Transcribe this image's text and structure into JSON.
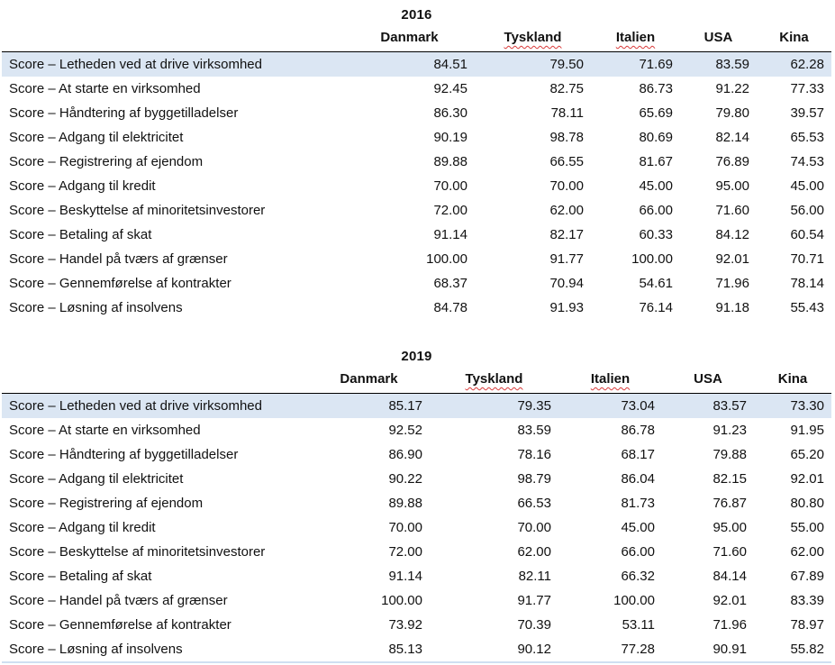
{
  "colors": {
    "highlight_row": "#dbe6f3",
    "header_rule": "#000000",
    "spellcheck_underline": "#d93b3b"
  },
  "tables": [
    {
      "year": "2016",
      "columns": [
        "Danmark",
        "Tyskland",
        "Italien",
        "USA",
        "Kina"
      ],
      "spellcheck_flagged": [
        "Tyskland",
        "Italien"
      ],
      "rows": [
        {
          "label": "Score – Letheden ved at drive virksomhed",
          "highlighted": true,
          "values": [
            "84.51",
            "79.50",
            "71.69",
            "83.59",
            "62.28"
          ]
        },
        {
          "label": "Score – At starte en virksomhed",
          "highlighted": false,
          "values": [
            "92.45",
            "82.75",
            "86.73",
            "91.22",
            "77.33"
          ]
        },
        {
          "label": "Score – Håndtering af byggetilladelser",
          "highlighted": false,
          "values": [
            "86.30",
            "78.11",
            "65.69",
            "79.80",
            "39.57"
          ]
        },
        {
          "label": "Score – Adgang til elektricitet",
          "highlighted": false,
          "values": [
            "90.19",
            "98.78",
            "80.69",
            "82.14",
            "65.53"
          ]
        },
        {
          "label": "Score – Registrering af ejendom",
          "highlighted": false,
          "values": [
            "89.88",
            "66.55",
            "81.67",
            "76.89",
            "74.53"
          ]
        },
        {
          "label": "Score – Adgang til kredit",
          "highlighted": false,
          "values": [
            "70.00",
            "70.00",
            "45.00",
            "95.00",
            "45.00"
          ]
        },
        {
          "label": "Score – Beskyttelse af minoritetsinvestorer",
          "highlighted": false,
          "values": [
            "72.00",
            "62.00",
            "66.00",
            "71.60",
            "56.00"
          ]
        },
        {
          "label": "Score – Betaling af skat",
          "highlighted": false,
          "values": [
            "91.14",
            "82.17",
            "60.33",
            "84.12",
            "60.54"
          ]
        },
        {
          "label": "Score – Handel på tværs af grænser",
          "highlighted": false,
          "values": [
            "100.00",
            "91.77",
            "100.00",
            "92.01",
            "70.71"
          ]
        },
        {
          "label": "Score – Gennemførelse af kontrakter",
          "highlighted": false,
          "values": [
            "68.37",
            "70.94",
            "54.61",
            "71.96",
            "78.14"
          ]
        },
        {
          "label": "Score – Løsning af insolvens",
          "highlighted": false,
          "values": [
            "84.78",
            "91.93",
            "76.14",
            "91.18",
            "55.43"
          ]
        }
      ]
    },
    {
      "year": "2019",
      "columns": [
        "Danmark",
        "Tyskland",
        "Italien",
        "USA",
        "Kina"
      ],
      "spellcheck_flagged": [
        "Tyskland",
        "Italien"
      ],
      "rows": [
        {
          "label": "Score – Letheden ved at drive virksomhed",
          "highlighted": true,
          "values": [
            "85.17",
            "79.35",
            "73.04",
            "83.57",
            "73.30"
          ]
        },
        {
          "label": "Score – At starte en virksomhed",
          "highlighted": false,
          "values": [
            "92.52",
            "83.59",
            "86.78",
            "91.23",
            "91.95"
          ]
        },
        {
          "label": "Score – Håndtering af byggetilladelser",
          "highlighted": false,
          "values": [
            "86.90",
            "78.16",
            "68.17",
            "79.88",
            "65.20"
          ]
        },
        {
          "label": "Score – Adgang til elektricitet",
          "highlighted": false,
          "values": [
            "90.22",
            "98.79",
            "86.04",
            "82.15",
            "92.01"
          ]
        },
        {
          "label": "Score – Registrering af ejendom",
          "highlighted": false,
          "values": [
            "89.88",
            "66.53",
            "81.73",
            "76.87",
            "80.80"
          ]
        },
        {
          "label": "Score – Adgang til kredit",
          "highlighted": false,
          "values": [
            "70.00",
            "70.00",
            "45.00",
            "95.00",
            "55.00"
          ]
        },
        {
          "label": "Score – Beskyttelse af minoritetsinvestorer",
          "highlighted": false,
          "values": [
            "72.00",
            "62.00",
            "66.00",
            "71.60",
            "62.00"
          ]
        },
        {
          "label": "Score – Betaling af skat",
          "highlighted": false,
          "values": [
            "91.14",
            "82.11",
            "66.32",
            "84.14",
            "67.89"
          ]
        },
        {
          "label": "Score – Handel på tværs af grænser",
          "highlighted": false,
          "values": [
            "100.00",
            "91.77",
            "100.00",
            "92.01",
            "83.39"
          ]
        },
        {
          "label": "Score – Gennemførelse af kontrakter",
          "highlighted": false,
          "values": [
            "73.92",
            "70.39",
            "53.11",
            "71.96",
            "78.97"
          ]
        },
        {
          "label": "Score – Løsning af insolvens",
          "highlighted": false,
          "values": [
            "85.13",
            "90.12",
            "77.28",
            "90.91",
            "55.82"
          ]
        }
      ]
    }
  ]
}
